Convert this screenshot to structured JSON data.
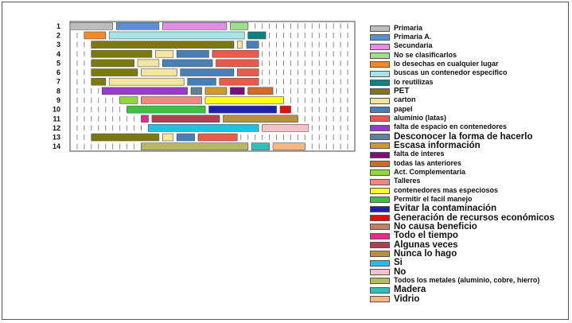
{
  "chart_data": {
    "type": "bar",
    "subtype": "horizontal-stacked-segments",
    "categories": [
      "1",
      "2",
      "3",
      "4",
      "5",
      "6",
      "7",
      "8",
      "9",
      "10",
      "11",
      "12",
      "13",
      "14"
    ],
    "x_ticks": 40,
    "legend": [
      {
        "name": "Primaria",
        "color": "#bdbdbd",
        "size": "s"
      },
      {
        "name": "Primaria A.",
        "color": "#5a8fd8",
        "size": "s"
      },
      {
        "name": "Secundaria",
        "color": "#e48de4",
        "size": "s"
      },
      {
        "name": "No se clasificarlos",
        "color": "#9de08a",
        "size": "s"
      },
      {
        "name": "lo desechas en cualquier lugar",
        "color": "#f08a2a",
        "size": "s"
      },
      {
        "name": "buscas un contenedor especifico",
        "color": "#a8e6e6",
        "size": "s"
      },
      {
        "name": "lo reutilizas",
        "color": "#0f7f7f",
        "size": "s"
      },
      {
        "name": "PET",
        "color": "#7a7a10",
        "size": "m"
      },
      {
        "name": "carton",
        "color": "#f2e6a0",
        "size": "s"
      },
      {
        "name": "papel",
        "color": "#4a7fb5",
        "size": "s"
      },
      {
        "name": "aluminio (latas)",
        "color": "#e85a4a",
        "size": "s"
      },
      {
        "name": "falta de espacio en contenedores",
        "color": "#9a3ac8",
        "size": "s"
      },
      {
        "name": "Desconocer la forma de hacerlo",
        "color": "#5f7f9a",
        "size": "l"
      },
      {
        "name": "Escasa información",
        "color": "#cc9a30",
        "size": "l"
      },
      {
        "name": "falta de interes",
        "color": "#7a107a",
        "size": "s"
      },
      {
        "name": "todas las anteriores",
        "color": "#d06a2a",
        "size": "s"
      },
      {
        "name": "Act. Complementaria",
        "color": "#90d840",
        "size": "s"
      },
      {
        "name": "Talleres",
        "color": "#f08a80",
        "size": "s"
      },
      {
        "name": "contenedores mas especiosos",
        "color": "#ffff20",
        "size": "s"
      },
      {
        "name": "Permitir el facil manejo",
        "color": "#40c040",
        "size": "s"
      },
      {
        "name": "Evitar la contaminación",
        "color": "#2020b0",
        "size": "l"
      },
      {
        "name": "Generación de recursos económicos",
        "color": "#e01010",
        "size": "l"
      },
      {
        "name": "No causa beneficio",
        "color": "#c08060",
        "size": "l"
      },
      {
        "name": "Todo el tiempo",
        "color": "#e82a8a",
        "size": "l"
      },
      {
        "name": "Algunas veces",
        "color": "#b04050",
        "size": "l"
      },
      {
        "name": "Nunca lo hago",
        "color": "#b89040",
        "size": "l"
      },
      {
        "name": "Si",
        "color": "#20c0e8",
        "size": "l"
      },
      {
        "name": "No",
        "color": "#f8c0c8",
        "size": "l"
      },
      {
        "name": "Todos los metales (aluminio, cobre,  hierro)",
        "color": "#b8b860",
        "size": "s"
      },
      {
        "name": "Madera",
        "color": "#30c0b8",
        "size": "l"
      },
      {
        "name": "Vidrio",
        "color": "#f8b880",
        "size": "l"
      }
    ],
    "rows": [
      {
        "label": "1",
        "segments": [
          {
            "c": 0,
            "start": 0,
            "end": 6
          },
          {
            "c": 1,
            "start": 6.5,
            "end": 12.5
          },
          {
            "c": 2,
            "start": 13,
            "end": 22
          },
          {
            "c": 3,
            "start": 22.5,
            "end": 25
          }
        ]
      },
      {
        "label": "2",
        "segments": [
          {
            "c": 4,
            "start": 2,
            "end": 5
          },
          {
            "c": 5,
            "start": 5.5,
            "end": 24.5
          },
          {
            "c": 6,
            "start": 25,
            "end": 27.5
          }
        ]
      },
      {
        "label": "3",
        "segments": [
          {
            "c": 7,
            "start": 3,
            "end": 23
          },
          {
            "c": 8,
            "start": 23.5,
            "end": 24.2
          },
          {
            "c": 9,
            "start": 24.8,
            "end": 26.5
          }
        ]
      },
      {
        "label": "4",
        "segments": [
          {
            "c": 7,
            "start": 3,
            "end": 11.5
          },
          {
            "c": 8,
            "start": 12,
            "end": 14.5
          },
          {
            "c": 9,
            "start": 15,
            "end": 19.5
          },
          {
            "c": 10,
            "start": 20,
            "end": 26.5
          }
        ]
      },
      {
        "label": "5",
        "segments": [
          {
            "c": 7,
            "start": 3,
            "end": 9
          },
          {
            "c": 8,
            "start": 9.5,
            "end": 12.5
          },
          {
            "c": 9,
            "start": 13,
            "end": 20
          },
          {
            "c": 10,
            "start": 20.5,
            "end": 26.5
          }
        ]
      },
      {
        "label": "6",
        "segments": [
          {
            "c": 7,
            "start": 3,
            "end": 9.5
          },
          {
            "c": 8,
            "start": 10,
            "end": 15
          },
          {
            "c": 9,
            "start": 15.5,
            "end": 23
          },
          {
            "c": 10,
            "start": 23.5,
            "end": 26.5
          }
        ]
      },
      {
        "label": "7",
        "segments": [
          {
            "c": 7,
            "start": 3,
            "end": 5
          },
          {
            "c": 8,
            "start": 5.5,
            "end": 16
          },
          {
            "c": 9,
            "start": 16.5,
            "end": 20.5
          },
          {
            "c": 10,
            "start": 21,
            "end": 26.5
          }
        ]
      },
      {
        "label": "8",
        "segments": [
          {
            "c": 11,
            "start": 4.5,
            "end": 16.5
          },
          {
            "c": 12,
            "start": 17,
            "end": 18.5
          },
          {
            "c": 13,
            "start": 19,
            "end": 22
          },
          {
            "c": 14,
            "start": 22.5,
            "end": 24.5
          },
          {
            "c": 15,
            "start": 25,
            "end": 28.5
          }
        ]
      },
      {
        "label": "9",
        "segments": [
          {
            "c": 16,
            "start": 7,
            "end": 9.5
          },
          {
            "c": 17,
            "start": 10,
            "end": 18.5
          },
          {
            "c": 18,
            "start": 19,
            "end": 30
          }
        ]
      },
      {
        "label": "10",
        "segments": [
          {
            "c": 19,
            "start": 8,
            "end": 19
          },
          {
            "c": 20,
            "start": 19.5,
            "end": 29
          },
          {
            "c": 21,
            "start": 29.5,
            "end": 31
          }
        ]
      },
      {
        "label": "11",
        "segments": [
          {
            "c": 23,
            "start": 10,
            "end": 11
          },
          {
            "c": 24,
            "start": 11.5,
            "end": 21
          },
          {
            "c": 25,
            "start": 21.5,
            "end": 32
          }
        ]
      },
      {
        "label": "12",
        "segments": [
          {
            "c": 26,
            "start": 11,
            "end": 26.5
          },
          {
            "c": 27,
            "start": 27,
            "end": 33.5
          }
        ]
      },
      {
        "label": "13",
        "segments": [
          {
            "c": 7,
            "start": 3,
            "end": 12.5
          },
          {
            "c": 8,
            "start": 13,
            "end": 14.5
          },
          {
            "c": 9,
            "start": 15,
            "end": 17.5
          },
          {
            "c": 10,
            "start": 18,
            "end": 23.5
          }
        ]
      },
      {
        "label": "14",
        "segments": [
          {
            "c": 28,
            "start": 10,
            "end": 25
          },
          {
            "c": 29,
            "start": 25.5,
            "end": 28
          },
          {
            "c": 30,
            "start": 28.5,
            "end": 33
          }
        ]
      }
    ]
  }
}
